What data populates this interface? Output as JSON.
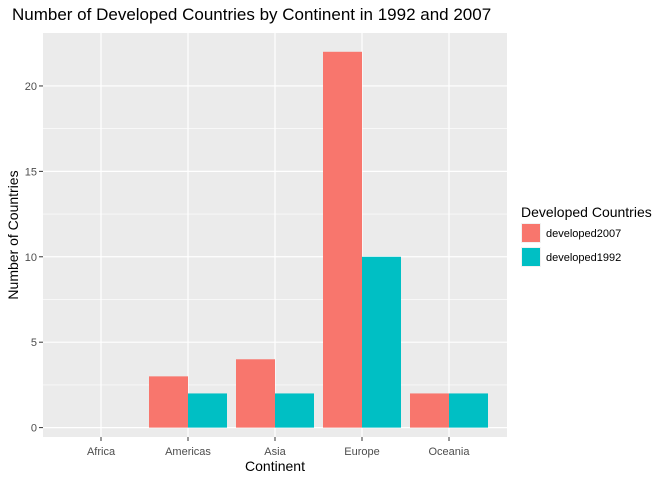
{
  "chart_data": {
    "type": "bar",
    "title": "Number of Developed Countries by Continent in 1992 and 2007",
    "xlabel": "Continent",
    "ylabel": "Number of Countries",
    "categories": [
      "Africa",
      "Americas",
      "Asia",
      "Europe",
      "Oceania"
    ],
    "series": [
      {
        "name": "developed2007",
        "values": [
          0,
          3,
          4,
          22,
          2
        ],
        "color": "#F8766D"
      },
      {
        "name": "developed1992",
        "values": [
          0,
          2,
          2,
          10,
          2
        ],
        "color": "#00BFC4"
      }
    ],
    "yticks": [
      0,
      5,
      10,
      15,
      20
    ],
    "ylim": [
      -0.55,
      23.1
    ],
    "grid": true,
    "legend": {
      "title": "Developed Countries",
      "position": "right"
    },
    "panel_background": "#EBEBEB",
    "grid_color": "#FFFFFF"
  }
}
